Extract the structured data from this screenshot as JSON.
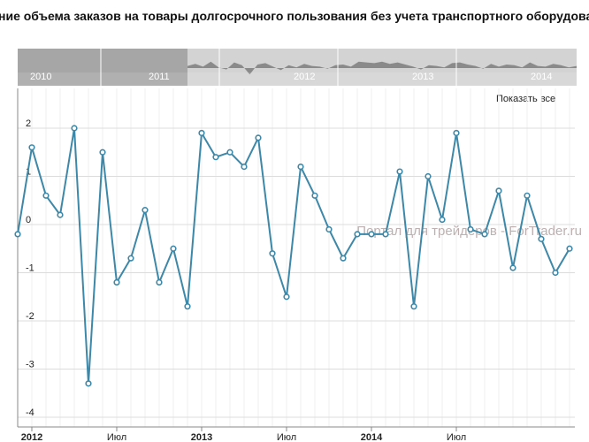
{
  "title": "ние объема заказов на товары долгосрочного пользования без учета транспортного оборудования",
  "watermark": "Портал для трейдеров - ForTrader.ru",
  "show_all_label": "Показать все",
  "navigator": {
    "years": [
      "2010",
      "2011",
      "2012",
      "2013",
      "2014"
    ],
    "selected_start": "2012",
    "profile": [
      0.3,
      0.6,
      0.2,
      0.9,
      0.1,
      -0.2,
      0.8,
      0.4,
      -0.9,
      0.5,
      0.7,
      0.2,
      -0.3,
      0.4,
      0.1,
      0.6,
      0.3,
      0.2,
      -0.1,
      0.4,
      0.5,
      0.2,
      0.9,
      0.8,
      0.7,
      0.9,
      0.6,
      0.8,
      0.5,
      0.2,
      -0.2,
      0.4,
      0.3,
      0.1,
      0.7,
      0.8,
      0.5,
      0.3,
      -0.1,
      0.6,
      0.2,
      0.5,
      0.4,
      0.1,
      0.8,
      0.3,
      0.2,
      0.6,
      0.4,
      0.1,
      0.3
    ]
  },
  "colors": {
    "line": "#3d88a8",
    "grid": "#dcdcdc",
    "nav_selected": "#a6a6a6",
    "nav_unselected": "#d3d3d3",
    "nav_profile": "#8a8a8a"
  },
  "chart_data": {
    "type": "line",
    "title": "ние объема заказов на товары долгосрочного пользования без учета транспортного оборудования",
    "xlabel": "",
    "ylabel": "",
    "ylim": [
      -4,
      2.5
    ],
    "yticks": [
      2,
      1,
      0,
      -1,
      -2,
      -3,
      -4
    ],
    "x_start": "2011-12",
    "xticks": [
      {
        "label": "2012",
        "bold": true,
        "month": 1
      },
      {
        "label": "Июл",
        "bold": false,
        "month": 7
      },
      {
        "label": "2013",
        "bold": true,
        "month": 13
      },
      {
        "label": "Июл",
        "bold": false,
        "month": 19
      },
      {
        "label": "2014",
        "bold": true,
        "month": 25
      },
      {
        "label": "Июл",
        "bold": false,
        "month": 31
      }
    ],
    "grid": true,
    "series": [
      {
        "values": [
          -0.2,
          1.6,
          0.6,
          0.2,
          2.0,
          -3.3,
          1.5,
          -1.2,
          -0.7,
          0.3,
          -1.2,
          -0.5,
          -1.7,
          1.9,
          1.4,
          1.5,
          1.2,
          1.8,
          -0.6,
          -1.5,
          1.2,
          0.6,
          -0.1,
          -0.7,
          -0.2,
          -0.2,
          -0.2,
          1.1,
          -1.7,
          1.0,
          0.1,
          1.9,
          -0.1,
          -0.2,
          0.7,
          -0.9,
          0.6,
          -0.3,
          -1.0,
          -0.5
        ]
      }
    ]
  }
}
